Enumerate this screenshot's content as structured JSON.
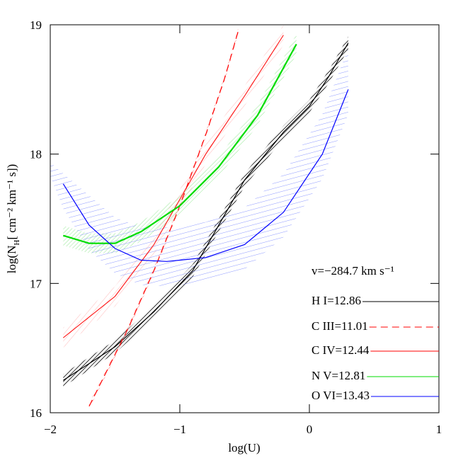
{
  "chart_data": {
    "type": "line",
    "xlabel": "log(U)",
    "ylabel": [
      "log(N",
      "H",
      "[ cm⁻² km⁻¹ s])"
    ],
    "annotation": "v=−284.7 km s⁻¹",
    "xlim": [
      -2,
      1
    ],
    "ylim": [
      16,
      19
    ],
    "xticks": [
      {
        "value": -2,
        "label": "−2"
      },
      {
        "value": -1,
        "label": "−1"
      },
      0,
      1
    ],
    "yticks": [
      16,
      17,
      18,
      19
    ],
    "series": [
      {
        "name": "H I=12.86",
        "color": "#000000",
        "dash": false,
        "x": [
          -1.9,
          -1.5,
          -1.2,
          -0.9,
          -0.5,
          -0.2,
          0,
          0.15,
          0.3
        ],
        "values": [
          16.25,
          16.51,
          16.78,
          17.1,
          17.8,
          18.17,
          18.37,
          18.6,
          18.86
        ]
      },
      {
        "name": "C III=11.01",
        "color": "#ff0000",
        "dash": true,
        "x": [
          -1.7,
          -1.55,
          -1.4,
          -1.2,
          -1.0,
          -0.8,
          -0.65,
          -0.55
        ],
        "values": [
          16.05,
          16.35,
          16.65,
          17.1,
          17.6,
          18.15,
          18.6,
          18.95
        ]
      },
      {
        "name": "C IV=12.44",
        "color": "#ff0000",
        "dash": false,
        "x": [
          -1.9,
          -1.5,
          -1.2,
          -1.0,
          -0.8,
          -0.5,
          -0.2
        ],
        "values": [
          16.58,
          16.9,
          17.3,
          17.65,
          18.0,
          18.45,
          18.92
        ]
      },
      {
        "name": "N V=12.81",
        "color": "#00dd00",
        "dash": false,
        "x": [
          -1.9,
          -1.7,
          -1.5,
          -1.3,
          -1.0,
          -0.7,
          -0.4,
          -0.1
        ],
        "values": [
          17.37,
          17.31,
          17.31,
          17.4,
          17.6,
          17.9,
          18.3,
          18.85
        ]
      },
      {
        "name": "O VI=13.43",
        "color": "#0000ff",
        "dash": false,
        "x": [
          -1.9,
          -1.7,
          -1.5,
          -1.3,
          -1.1,
          -0.8,
          -0.5,
          -0.2,
          0.1,
          0.3
        ],
        "values": [
          17.77,
          17.45,
          17.27,
          17.18,
          17.17,
          17.2,
          17.3,
          17.55,
          18.0,
          18.5
        ]
      }
    ]
  }
}
